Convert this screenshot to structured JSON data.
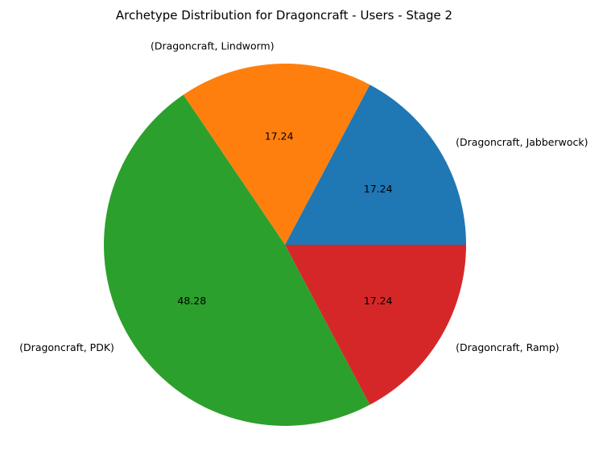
{
  "chart_data": {
    "type": "pie",
    "title": "Archetype Distribution for Dragoncraft - Users - Stage 2",
    "labels": [
      "(Dragoncraft, Jabberwock)",
      "(Dragoncraft, Lindworm)",
      "(Dragoncraft, PDK)",
      "(Dragoncraft, Ramp)"
    ],
    "values": [
      17.24,
      17.24,
      48.28,
      17.24
    ],
    "value_labels": [
      "17.24",
      "17.24",
      "48.28",
      "17.24"
    ],
    "colors": [
      "#1f77b4",
      "#ff7f0e",
      "#2ca02c",
      "#d62728"
    ],
    "start_angle_deg": 0,
    "direction": "counterclockwise"
  }
}
